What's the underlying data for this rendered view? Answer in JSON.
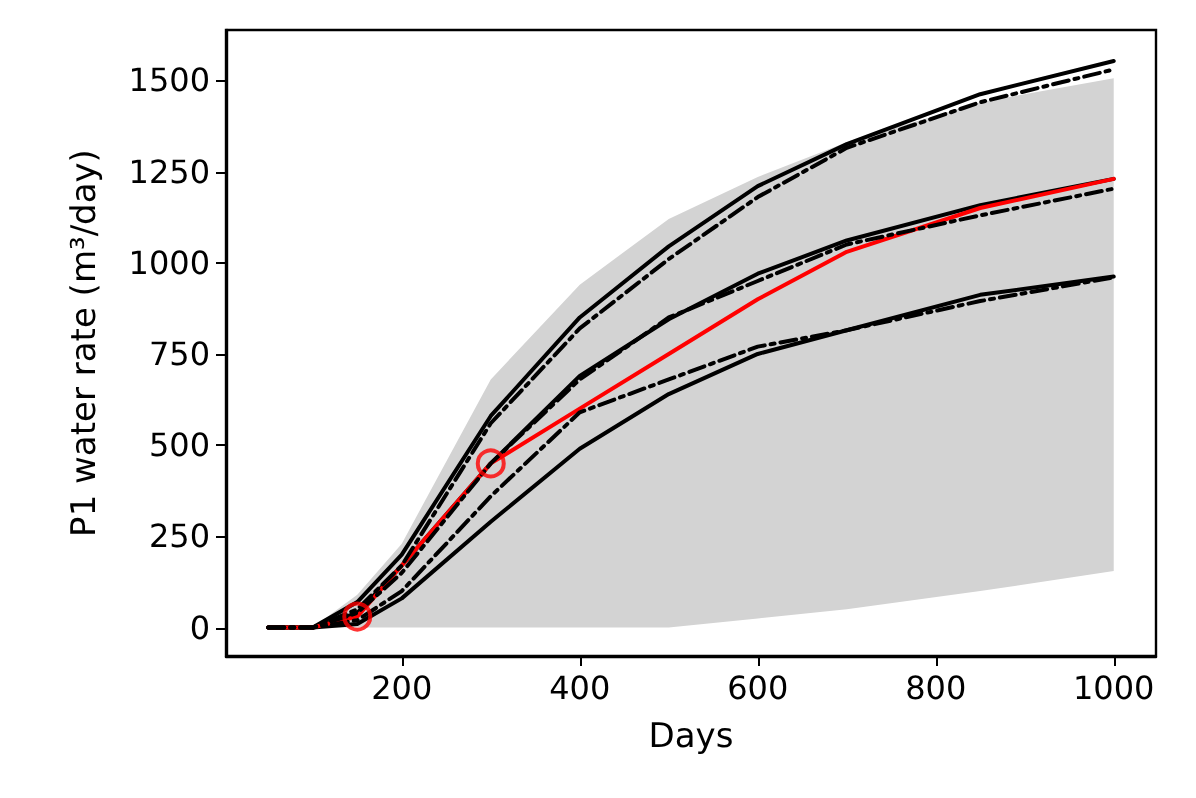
{
  "chart_data": {
    "type": "line",
    "xlabel": "Days",
    "ylabel": "P1 water rate (m³/day)",
    "x": [
      50,
      100,
      150,
      200,
      300,
      400,
      500,
      600,
      700,
      850,
      1000
    ],
    "series": [
      {
        "color": "#000000",
        "line_style": "solid",
        "values": [
          0,
          0,
          10,
          80,
          290,
          490,
          640,
          750,
          815,
          912,
          962
        ]
      },
      {
        "color": "#000000",
        "line_style": "dashdot",
        "values": [
          0,
          0,
          20,
          100,
          360,
          590,
          680,
          770,
          815,
          895,
          960
        ]
      },
      {
        "color": "#000000",
        "line_style": "solid",
        "values": [
          0,
          0,
          40,
          170,
          450,
          690,
          845,
          970,
          1061,
          1158,
          1230
        ],
        "lower": [
          0,
          0,
          0,
          0,
          0,
          0,
          0,
          25,
          50,
          100,
          155
        ],
        "upper": [
          0,
          0,
          90,
          230,
          680,
          940,
          1120,
          1235,
          1330,
          1440,
          1506
        ]
      },
      {
        "color": "#000000",
        "line_style": "dashdot",
        "values": [
          0,
          0,
          40,
          150,
          450,
          680,
          850,
          950,
          1050,
          1130,
          1203
        ]
      },
      {
        "color": "#000000",
        "line_style": "solid",
        "values": [
          0,
          0,
          70,
          200,
          580,
          850,
          1045,
          1210,
          1325,
          1462,
          1553
        ]
      },
      {
        "color": "#000000",
        "line_style": "dashdot",
        "values": [
          0,
          0,
          50,
          170,
          560,
          820,
          1010,
          1180,
          1315,
          1440,
          1530
        ]
      },
      {
        "color": "#ff0000",
        "line_style": "solid",
        "values": [
          0,
          0,
          30,
          170,
          450,
          600,
          750,
          900,
          1030,
          1150,
          1230
        ]
      },
      {
        "type": "scatter",
        "color": "#ff0000",
        "marker": "circle",
        "x": [
          150,
          300
        ],
        "values": [
          30,
          450
        ]
      }
    ],
    "marker": "none",
    "xlim": [
      2.5,
      1047.5
    ],
    "xticks": [
      200,
      400,
      600,
      800,
      1000
    ],
    "ylim": [
      -78,
      1638
    ],
    "yticks": [
      0,
      250,
      500,
      750,
      1000,
      1250,
      1500
    ],
    "grid": false
  }
}
